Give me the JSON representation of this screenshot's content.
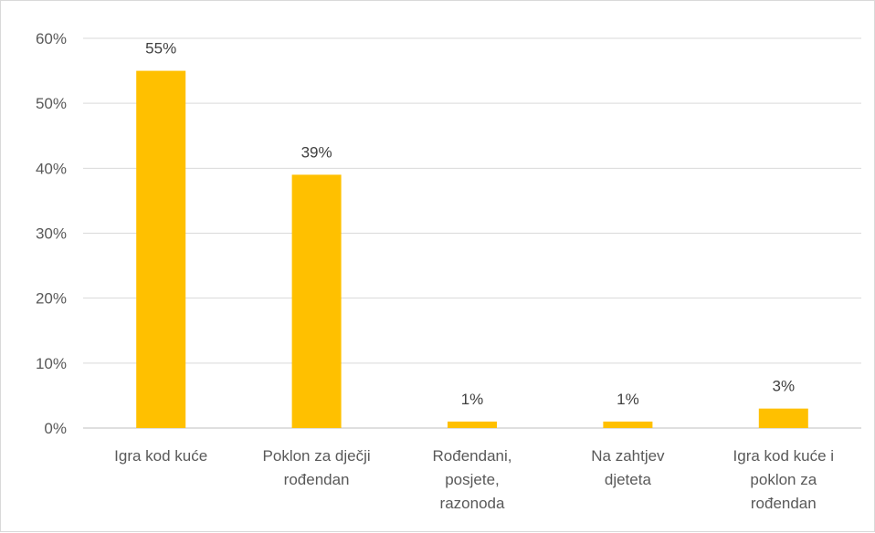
{
  "chart_data": {
    "type": "bar",
    "categories": [
      [
        "Igra kod kuće"
      ],
      [
        "Poklon za dječji",
        "rođendan"
      ],
      [
        "Rođendani,",
        "posjete,",
        "razonoda"
      ],
      [
        "Na zahtjev",
        "djeteta"
      ],
      [
        "Igra kod kuće i",
        "poklon za",
        "rođendan"
      ]
    ],
    "values": [
      55,
      39,
      1,
      1,
      3
    ],
    "data_labels": [
      "55%",
      "39%",
      "1%",
      "1%",
      "3%"
    ],
    "y_ticks": [
      0,
      10,
      20,
      30,
      40,
      50,
      60
    ],
    "y_tick_labels": [
      "0%",
      "10%",
      "20%",
      "30%",
      "40%",
      "50%",
      "60%"
    ],
    "ylim": [
      0,
      60
    ],
    "title": "",
    "xlabel": "",
    "ylabel": "",
    "grid": true,
    "legend": "none",
    "bar_color": "#FFC000"
  }
}
